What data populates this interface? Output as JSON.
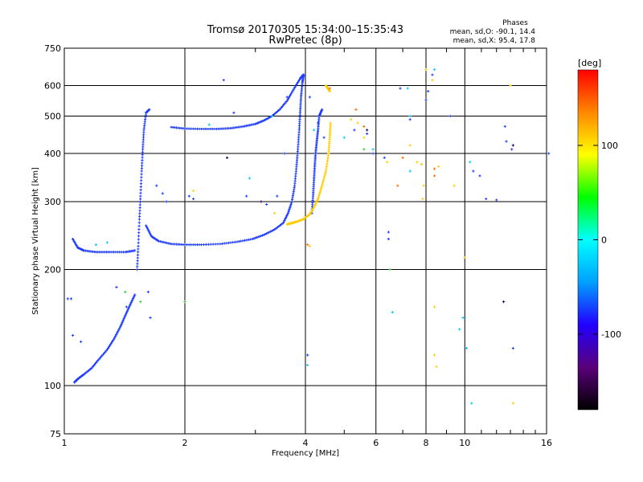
{
  "chart_data": {
    "type": "scatter",
    "title": "Tromsø 20170305 15:34:00–15:35:43",
    "subtitle": "RwPretec (8p)",
    "xlabel": "Frequency [MHz]",
    "ylabel": "Stationary phase Virtual Height [km]",
    "x_scale": "log",
    "y_scale": "log",
    "xlim": [
      1,
      16
    ],
    "ylim": [
      75,
      750
    ],
    "x_ticks": [
      1,
      2,
      4,
      6,
      8,
      10,
      16
    ],
    "y_ticks": [
      75,
      100,
      200,
      300,
      400,
      500,
      600,
      750
    ],
    "grid": true,
    "phases_box": {
      "title": "Phases",
      "line1": "mean, sd,O: -90.1, 14.4",
      "line2": "mean, sd,X:  95.4, 17.8"
    },
    "colorbar": {
      "label": "[deg]",
      "range": [
        -180,
        180
      ],
      "ticks": [
        100,
        0,
        -100
      ],
      "colors": [
        "#000000",
        "#5a007a",
        "#2200ff",
        "#00a0ff",
        "#00ffff",
        "#00ff00",
        "#ffff00",
        "#ff8800",
        "#ff0000"
      ]
    },
    "series": [
      {
        "color": "#1e3cff",
        "segments": [
          [
            [
              1.06,
              102
            ],
            [
              1.08,
              104
            ],
            [
              1.12,
              107
            ],
            [
              1.17,
              111
            ],
            [
              1.22,
              117
            ],
            [
              1.28,
              124
            ],
            [
              1.33,
              132
            ],
            [
              1.38,
              142
            ],
            [
              1.42,
              152
            ],
            [
              1.46,
              162
            ],
            [
              1.5,
              172
            ]
          ],
          [
            [
              1.05,
              240
            ],
            [
              1.08,
              228
            ],
            [
              1.12,
              224
            ],
            [
              1.2,
              222
            ],
            [
              1.3,
              222
            ],
            [
              1.42,
              222
            ],
            [
              1.5,
              224
            ]
          ],
          [
            [
              1.52,
              200
            ],
            [
              1.53,
              230
            ],
            [
              1.54,
              270
            ],
            [
              1.55,
              310
            ],
            [
              1.56,
              360
            ],
            [
              1.57,
              410
            ],
            [
              1.58,
              460
            ],
            [
              1.6,
              510
            ],
            [
              1.63,
              520
            ]
          ],
          [
            [
              1.6,
              260
            ],
            [
              1.65,
              244
            ],
            [
              1.72,
              237
            ],
            [
              1.85,
              233
            ],
            [
              2.0,
              232
            ],
            [
              2.2,
              232
            ],
            [
              2.45,
              233
            ],
            [
              2.7,
              236
            ],
            [
              2.95,
              240
            ],
            [
              3.15,
              246
            ],
            [
              3.35,
              254
            ],
            [
              3.52,
              264
            ],
            [
              3.62,
              280
            ],
            [
              3.7,
              300
            ],
            [
              3.76,
              330
            ],
            [
              3.8,
              370
            ],
            [
              3.83,
              410
            ],
            [
              3.86,
              460
            ],
            [
              3.88,
              510
            ],
            [
              3.9,
              560
            ],
            [
              3.93,
              610
            ],
            [
              3.96,
              640
            ]
          ],
          [
            [
              1.85,
              468
            ],
            [
              2.0,
              464
            ],
            [
              2.2,
              463
            ],
            [
              2.4,
              463
            ],
            [
              2.6,
              465
            ],
            [
              2.8,
              470
            ],
            [
              3.0,
              477
            ],
            [
              3.15,
              487
            ],
            [
              3.3,
              500
            ],
            [
              3.45,
              520
            ],
            [
              3.6,
              548
            ],
            [
              3.75,
              590
            ],
            [
              3.88,
              625
            ],
            [
              3.95,
              640
            ]
          ],
          [
            [
              4.15,
              280
            ],
            [
              4.18,
              310
            ],
            [
              4.2,
              340
            ],
            [
              4.22,
              370
            ],
            [
              4.24,
              400
            ],
            [
              4.27,
              430
            ],
            [
              4.3,
              460
            ],
            [
              4.33,
              500
            ],
            [
              4.4,
              520
            ]
          ]
        ],
        "points": [
          [
            1.02,
            168
          ],
          [
            1.04,
            168
          ],
          [
            1.05,
            135
          ],
          [
            1.1,
            130
          ],
          [
            1.35,
            180
          ],
          [
            1.43,
            160
          ],
          [
            1.62,
            175
          ],
          [
            1.64,
            150
          ],
          [
            1.7,
            330
          ],
          [
            1.76,
            315
          ],
          [
            1.8,
            300
          ],
          [
            2.05,
            310
          ],
          [
            2.1,
            305
          ],
          [
            2.5,
            620
          ],
          [
            2.65,
            510
          ],
          [
            2.85,
            310
          ],
          [
            3.2,
            295
          ],
          [
            3.4,
            310
          ],
          [
            3.55,
            400
          ],
          [
            3.6,
            560
          ],
          [
            4.05,
            120
          ],
          [
            4.1,
            560
          ],
          [
            4.3,
            480
          ],
          [
            4.45,
            440
          ],
          [
            5.3,
            460
          ],
          [
            5.7,
            450
          ],
          [
            5.9,
            400
          ],
          [
            6.3,
            390
          ],
          [
            6.45,
            250
          ],
          [
            6.45,
            240
          ],
          [
            6.9,
            590
          ],
          [
            7.3,
            490
          ],
          [
            8.0,
            550
          ],
          [
            8.1,
            580
          ],
          [
            8.3,
            640
          ],
          [
            9.2,
            500
          ],
          [
            10.5,
            360
          ],
          [
            10.9,
            350
          ],
          [
            11.3,
            305
          ],
          [
            12.0,
            303
          ],
          [
            12.6,
            470
          ],
          [
            12.7,
            430
          ],
          [
            13.1,
            410
          ],
          [
            13.2,
            125
          ],
          [
            16.2,
            400
          ]
        ]
      },
      {
        "color": "#ffcc00",
        "segments": [
          [
            [
              3.6,
              262
            ],
            [
              3.7,
              264
            ],
            [
              3.8,
              266
            ],
            [
              3.95,
              270
            ],
            [
              4.1,
              278
            ],
            [
              4.2,
              290
            ],
            [
              4.3,
              305
            ],
            [
              4.4,
              330
            ],
            [
              4.5,
              360
            ],
            [
              4.57,
              400
            ],
            [
              4.6,
              440
            ],
            [
              4.62,
              480
            ]
          ],
          [
            [
              4.6,
              580
            ],
            [
              4.55,
              590
            ],
            [
              4.5,
              600
            ]
          ]
        ],
        "points": [
          [
            2.1,
            320
          ],
          [
            3.35,
            280
          ],
          [
            4.1,
            230
          ],
          [
            5.2,
            490
          ],
          [
            5.4,
            480
          ],
          [
            5.6,
            440
          ],
          [
            6.4,
            380
          ],
          [
            7.3,
            420
          ],
          [
            7.6,
            380
          ],
          [
            7.8,
            375
          ],
          [
            7.9,
            330
          ],
          [
            7.85,
            305
          ],
          [
            8.0,
            660
          ],
          [
            8.3,
            620
          ],
          [
            8.4,
            160
          ],
          [
            8.4,
            120
          ],
          [
            8.5,
            112
          ],
          [
            8.6,
            370
          ],
          [
            9.4,
            330
          ],
          [
            10.0,
            215
          ],
          [
            13.0,
            600
          ],
          [
            13.2,
            90
          ]
        ]
      },
      {
        "color": "#00c8ff",
        "segments": [],
        "points": [
          [
            1.2,
            232
          ],
          [
            1.28,
            235
          ],
          [
            2.3,
            475
          ],
          [
            2.9,
            345
          ],
          [
            3.3,
            500
          ],
          [
            4.05,
            113
          ],
          [
            4.2,
            460
          ],
          [
            5.0,
            440
          ],
          [
            5.9,
            410
          ],
          [
            6.6,
            155
          ],
          [
            7.2,
            590
          ],
          [
            7.3,
            500
          ],
          [
            7.3,
            360
          ],
          [
            8.4,
            660
          ],
          [
            9.7,
            140
          ],
          [
            9.9,
            150
          ],
          [
            10.1,
            125
          ],
          [
            10.3,
            380
          ],
          [
            10.4,
            90
          ]
        ]
      },
      {
        "color": "#33cc33",
        "segments": [],
        "points": [
          [
            1.42,
            175
          ],
          [
            1.55,
            165
          ],
          [
            2.0,
            165
          ],
          [
            5.6,
            410
          ],
          [
            6.5,
            200
          ]
        ]
      },
      {
        "color": "#ff6a00",
        "segments": [],
        "points": [
          [
            4.05,
            232
          ],
          [
            4.6,
            590
          ],
          [
            5.35,
            520
          ],
          [
            5.6,
            470
          ],
          [
            6.8,
            330
          ],
          [
            7.0,
            390
          ],
          [
            8.4,
            365
          ],
          [
            8.4,
            350
          ]
        ]
      },
      {
        "color": "#1a0060",
        "segments": [],
        "points": [
          [
            2.55,
            390
          ],
          [
            3.1,
            300
          ],
          [
            5.7,
            460
          ],
          [
            12.5,
            165
          ],
          [
            13.2,
            420
          ]
        ]
      }
    ]
  }
}
